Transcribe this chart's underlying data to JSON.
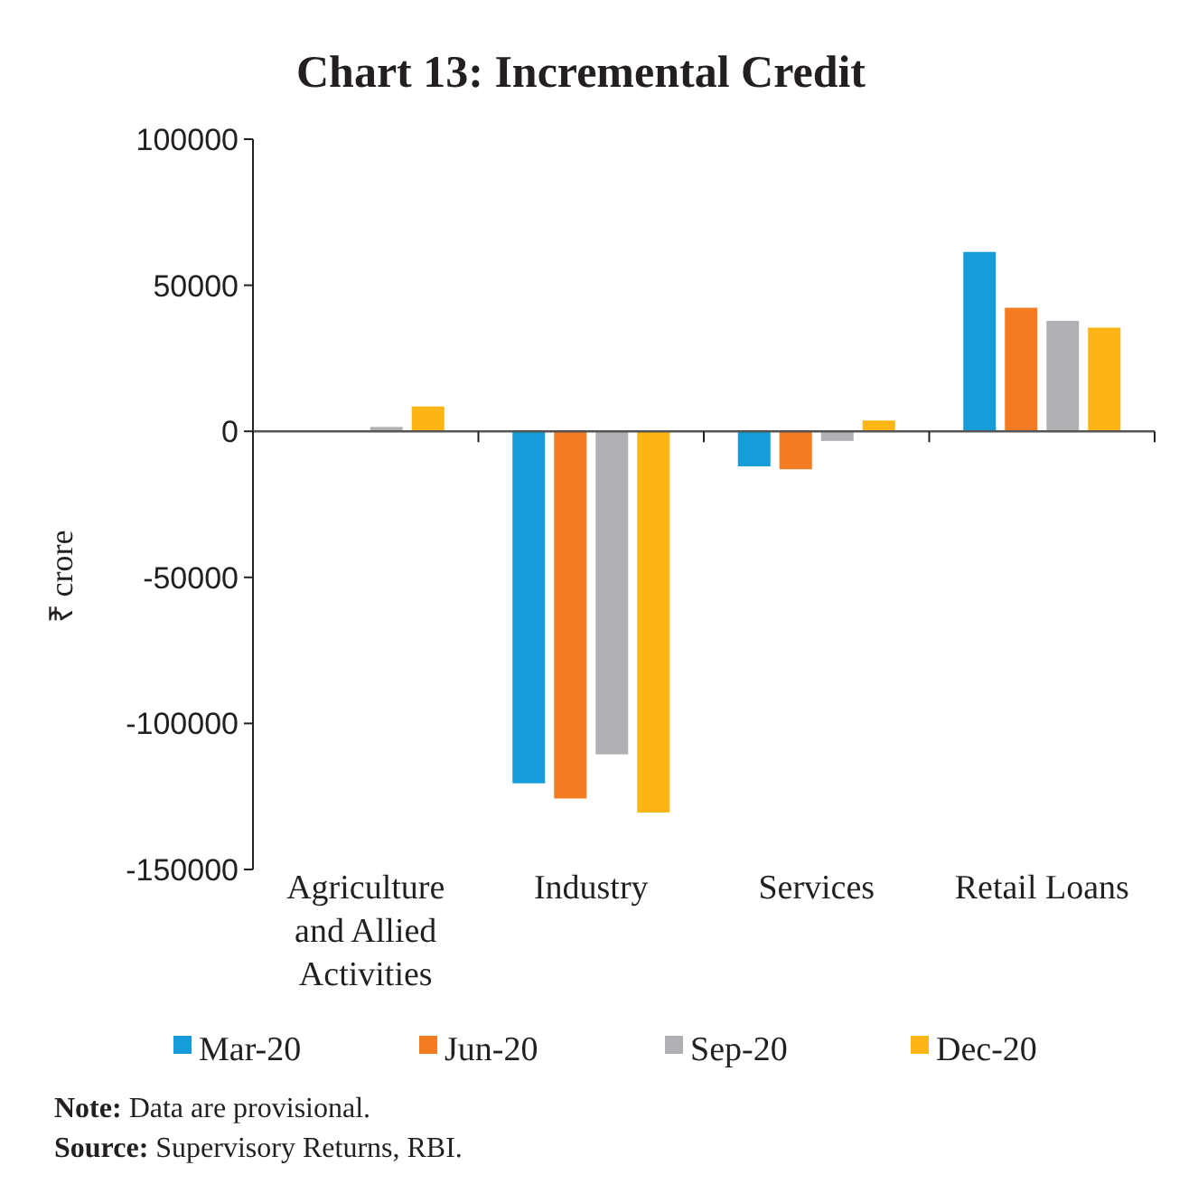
{
  "chart_data": {
    "type": "bar",
    "title": "Chart 13: Incremental Credit",
    "ylabel": "₹ crore",
    "categories": [
      "Agriculture and Allied Activities",
      "Industry",
      "Services",
      "Retail Loans"
    ],
    "series": [
      {
        "name": "Mar-20",
        "color": "#169cd8",
        "values": [
          0,
          -120500,
          -12000,
          61400
        ]
      },
      {
        "name": "Jun-20",
        "color": "#f37b22",
        "values": [
          0,
          -125700,
          -13000,
          42300
        ]
      },
      {
        "name": "Sep-20",
        "color": "#b0b1b5",
        "values": [
          1500,
          -110600,
          -3300,
          37800
        ]
      },
      {
        "name": "Dec-20",
        "color": "#fdb515",
        "values": [
          8500,
          -130500,
          3700,
          35500
        ]
      }
    ],
    "ylim": [
      -150000,
      100000
    ],
    "yticks": [
      -150000,
      -100000,
      -50000,
      0,
      50000,
      100000
    ],
    "legend": "bottom",
    "annotations": [
      "Note: Data are provisional.",
      "Source: Supervisory Returns, RBI."
    ]
  }
}
